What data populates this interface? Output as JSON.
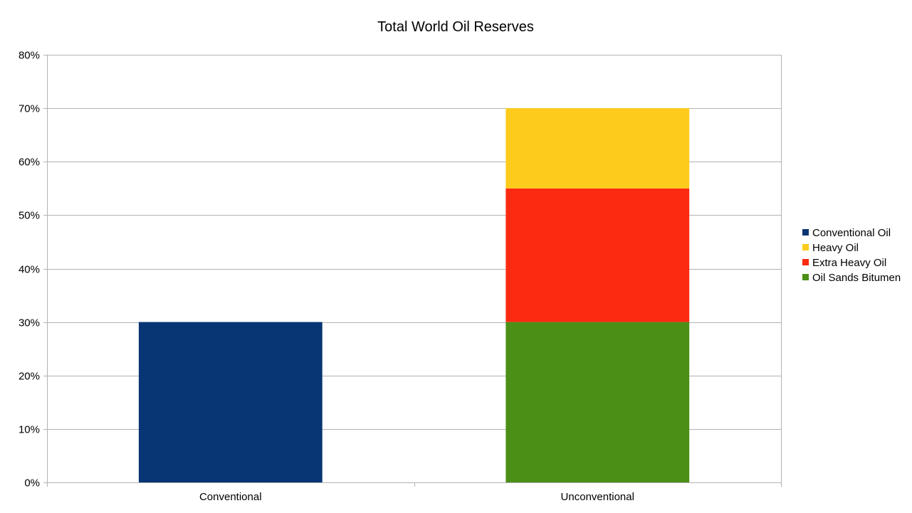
{
  "chart_data": {
    "type": "bar",
    "stacked": true,
    "title": "Total World Oil Reserves",
    "xlabel": "",
    "ylabel": "",
    "categories": [
      "Conventional",
      "Unconventional"
    ],
    "y_ticks": [
      "0%",
      "10%",
      "20%",
      "30%",
      "40%",
      "50%",
      "60%",
      "70%",
      "80%"
    ],
    "ylim": [
      0,
      80
    ],
    "y_unit": "%",
    "grid": true,
    "legend_position": "right",
    "series": [
      {
        "name": "Conventional Oil",
        "color": "#083573",
        "values": [
          30,
          0
        ]
      },
      {
        "name": "Oil Sands Bitumen",
        "color": "#4b8f17",
        "values": [
          0,
          30
        ]
      },
      {
        "name": "Extra Heavy Oil",
        "color": "#fb2a11",
        "values": [
          0,
          25
        ]
      },
      {
        "name": "Heavy Oil",
        "color": "#fdcb1b",
        "values": [
          0,
          15
        ]
      }
    ],
    "legend": [
      {
        "label": "Conventional Oil",
        "color": "#083573"
      },
      {
        "label": "Heavy Oil",
        "color": "#fdcb1b"
      },
      {
        "label": "Extra Heavy Oil",
        "color": "#fb2a11"
      },
      {
        "label": "Oil Sands Bitumen",
        "color": "#4b8f17"
      }
    ]
  }
}
